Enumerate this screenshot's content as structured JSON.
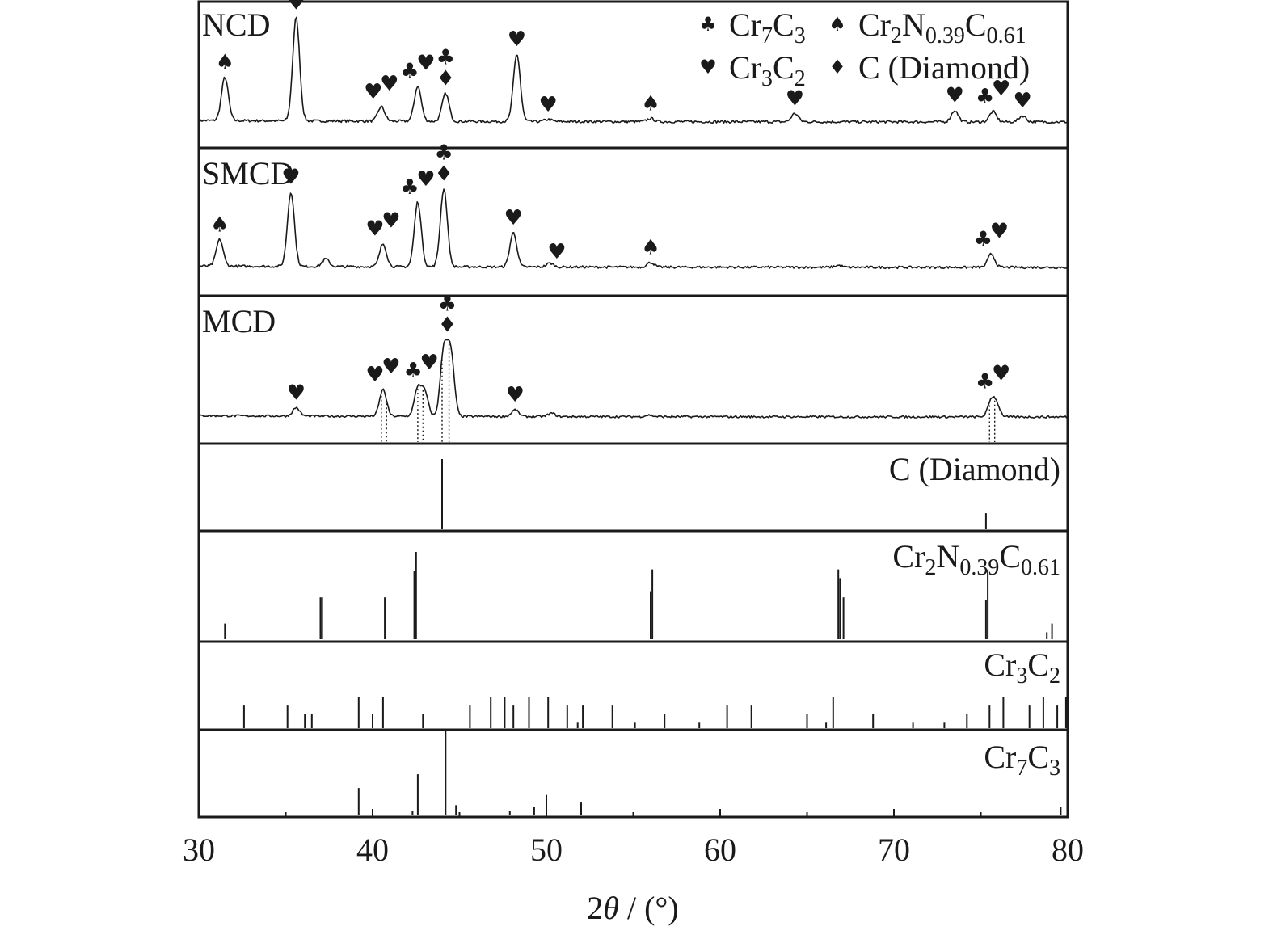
{
  "chart_data": {
    "type": "line",
    "xlabel_main": "2",
    "xlabel_theta": "θ",
    "xlabel_unit": " / (°)",
    "xlim": [
      30,
      80
    ],
    "xticks": [
      "30",
      "40",
      "50",
      "60",
      "70",
      "80"
    ],
    "legend": {
      "placement": "top-right",
      "entries": [
        {
          "marker": "club",
          "glyph": "♣",
          "name": "Cr₇C₃",
          "label": {
            "base": "Cr",
            "s1": "7",
            "b2": "C",
            "s2": "3"
          }
        },
        {
          "marker": "spade",
          "glyph": "♠",
          "name": "Cr₂N₀.₃₉C₀.₆₁",
          "label": {
            "base": "Cr",
            "s1": "2",
            "b2": "N",
            "s2": "0.39",
            "b3": "C",
            "s3": "0.61"
          }
        },
        {
          "marker": "heart",
          "glyph": "♥",
          "name": "Cr₃C₂",
          "label": {
            "base": "Cr",
            "s1": "3",
            "b2": "C",
            "s2": "2"
          }
        },
        {
          "marker": "diamond",
          "glyph": "♦",
          "name": "C (Diamond)",
          "label": {
            "base": "C (Diamond)"
          }
        }
      ]
    },
    "patterns": [
      {
        "name": "NCD",
        "peaks": [
          [
            31.5,
            0.42
          ],
          [
            35.6,
            1.0
          ],
          [
            40.5,
            0.14
          ],
          [
            42.6,
            0.34
          ],
          [
            44.2,
            0.27
          ],
          [
            48.3,
            0.65
          ],
          [
            50.1,
            0.02
          ],
          [
            56.0,
            0.03
          ],
          [
            64.3,
            0.08
          ],
          [
            73.5,
            0.11
          ],
          [
            75.7,
            0.1
          ],
          [
            77.4,
            0.06
          ]
        ],
        "markers": [
          {
            "x": 31.5,
            "symbols": [
              "spade"
            ]
          },
          {
            "x": 35.6,
            "symbols": [
              "heart"
            ]
          },
          {
            "x": 40.5,
            "symbols": [
              "heart",
              "heart"
            ]
          },
          {
            "x": 42.6,
            "symbols": [
              "club",
              "heart"
            ]
          },
          {
            "x": 44.2,
            "symbols": [
              "diamond",
              "club"
            ]
          },
          {
            "x": 48.3,
            "symbols": [
              "heart"
            ]
          },
          {
            "x": 50.1,
            "symbols": [
              "heart"
            ]
          },
          {
            "x": 56.0,
            "symbols": [
              "spade"
            ]
          },
          {
            "x": 64.3,
            "symbols": [
              "heart"
            ]
          },
          {
            "x": 73.5,
            "symbols": [
              "heart"
            ]
          },
          {
            "x": 75.7,
            "symbols": [
              "club",
              "heart"
            ]
          },
          {
            "x": 77.4,
            "symbols": [
              "heart"
            ]
          }
        ]
      },
      {
        "name": "SMCD",
        "peaks": [
          [
            31.2,
            0.28
          ],
          [
            35.3,
            0.78
          ],
          [
            37.3,
            0.08
          ],
          [
            40.6,
            0.24
          ],
          [
            42.6,
            0.68
          ],
          [
            44.1,
            0.82
          ],
          [
            48.1,
            0.36
          ],
          [
            50.2,
            0.04
          ],
          [
            56.0,
            0.05
          ],
          [
            66.8,
            0.02
          ],
          [
            75.6,
            0.14
          ]
        ],
        "markers": [
          {
            "x": 31.2,
            "symbols": [
              "spade"
            ]
          },
          {
            "x": 35.3,
            "symbols": [
              "heart"
            ]
          },
          {
            "x": 40.6,
            "symbols": [
              "heart",
              "heart"
            ]
          },
          {
            "x": 42.6,
            "symbols": [
              "club",
              "heart"
            ]
          },
          {
            "x": 44.1,
            "symbols": [
              "diamond",
              "club"
            ]
          },
          {
            "x": 48.1,
            "symbols": [
              "heart"
            ]
          },
          {
            "x": 50.6,
            "symbols": [
              "heart"
            ]
          },
          {
            "x": 56.0,
            "symbols": [
              "spade"
            ]
          },
          {
            "x": 75.6,
            "symbols": [
              "club",
              "heart"
            ]
          }
        ]
      },
      {
        "name": "MCD",
        "peaks": [
          [
            35.6,
            0.1
          ],
          [
            40.6,
            0.32
          ],
          [
            42.6,
            0.33
          ],
          [
            43.0,
            0.28
          ],
          [
            44.1,
            0.78
          ],
          [
            44.5,
            0.74
          ],
          [
            48.2,
            0.08
          ],
          [
            50.3,
            0.04
          ],
          [
            55.9,
            0.02
          ],
          [
            75.6,
            0.18
          ],
          [
            75.9,
            0.14
          ]
        ],
        "markers": [
          {
            "x": 35.6,
            "symbols": [
              "heart"
            ]
          },
          {
            "x": 40.6,
            "symbols": [
              "heart",
              "heart"
            ]
          },
          {
            "x": 42.8,
            "symbols": [
              "club",
              "heart"
            ]
          },
          {
            "x": 44.3,
            "symbols": [
              "diamond",
              "club"
            ]
          },
          {
            "x": 48.2,
            "symbols": [
              "heart"
            ]
          },
          {
            "x": 75.7,
            "symbols": [
              "club",
              "heart"
            ]
          }
        ],
        "guides": [
          40.5,
          40.8,
          42.6,
          42.9,
          44.0,
          44.4,
          75.5,
          75.8
        ]
      }
    ],
    "references": [
      {
        "name": "C (Diamond)",
        "label": {
          "base": "C (Diamond)"
        },
        "sticks": [
          [
            44.0,
            1.0
          ],
          [
            75.3,
            0.22
          ]
        ]
      },
      {
        "name": "Cr₂N₀.₃₉C₀.₆₁",
        "label": {
          "base": "Cr",
          "s1": "2",
          "b2": "N",
          "s2": "0.39",
          "b3": "C",
          "s3": "0.61"
        },
        "sticks": [
          [
            31.5,
            0.18
          ],
          [
            37.0,
            0.48
          ],
          [
            37.1,
            0.48
          ],
          [
            40.7,
            0.48
          ],
          [
            42.4,
            0.78
          ],
          [
            42.5,
            1.0
          ],
          [
            56.0,
            0.55
          ],
          [
            56.1,
            0.8
          ],
          [
            66.8,
            0.8
          ],
          [
            66.9,
            0.7
          ],
          [
            67.1,
            0.48
          ],
          [
            75.3,
            0.45
          ],
          [
            75.4,
            0.8
          ],
          [
            78.8,
            0.08
          ],
          [
            79.1,
            0.18
          ]
        ]
      },
      {
        "name": "Cr₃C₂",
        "label": {
          "base": "Cr",
          "s1": "3",
          "b2": "C",
          "s2": "2"
        },
        "sticks": [
          [
            32.6,
            0.62
          ],
          [
            35.1,
            0.62
          ],
          [
            36.1,
            0.38
          ],
          [
            36.5,
            0.38
          ],
          [
            39.2,
            0.85
          ],
          [
            40.0,
            0.38
          ],
          [
            40.6,
            0.85
          ],
          [
            42.9,
            0.38
          ],
          [
            45.6,
            0.62
          ],
          [
            46.8,
            0.85
          ],
          [
            47.6,
            0.85
          ],
          [
            48.1,
            0.62
          ],
          [
            49.0,
            0.85
          ],
          [
            50.1,
            0.85
          ],
          [
            51.2,
            0.62
          ],
          [
            51.8,
            0.15
          ],
          [
            52.1,
            0.62
          ],
          [
            53.8,
            0.62
          ],
          [
            55.1,
            0.15
          ],
          [
            56.8,
            0.38
          ],
          [
            58.8,
            0.15
          ],
          [
            60.4,
            0.62
          ],
          [
            61.8,
            0.62
          ],
          [
            65.0,
            0.38
          ],
          [
            66.1,
            0.15
          ],
          [
            66.5,
            0.85
          ],
          [
            68.8,
            0.38
          ],
          [
            71.1,
            0.15
          ],
          [
            72.9,
            0.15
          ],
          [
            74.2,
            0.38
          ],
          [
            75.5,
            0.62
          ],
          [
            76.3,
            0.85
          ],
          [
            77.8,
            0.62
          ],
          [
            78.6,
            0.85
          ],
          [
            79.4,
            0.62
          ],
          [
            79.9,
            0.85
          ]
        ]
      },
      {
        "name": "Cr₇C₃",
        "label": {
          "base": "Cr",
          "s1": "7",
          "b2": "C",
          "s2": "3"
        },
        "sticks": [
          [
            39.2,
            0.32
          ],
          [
            42.3,
            0.05
          ],
          [
            42.6,
            0.48
          ],
          [
            44.2,
            1.0
          ],
          [
            44.8,
            0.12
          ],
          [
            47.9,
            0.05
          ],
          [
            49.3,
            0.1
          ],
          [
            50.0,
            0.24
          ],
          [
            52.0,
            0.15
          ],
          [
            79.6,
            0.1
          ]
        ]
      }
    ]
  }
}
